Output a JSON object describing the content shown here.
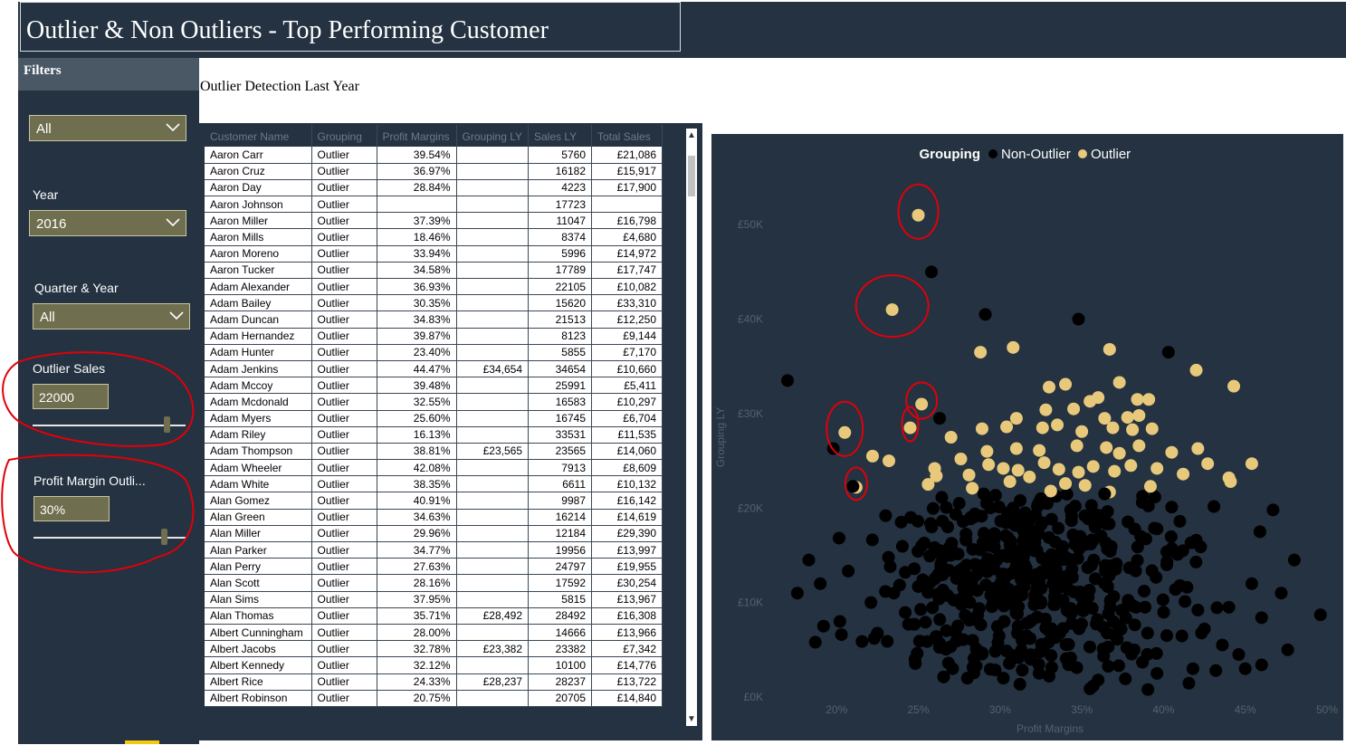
{
  "header": {
    "title": "Outlier & Non Outliers - Top Performing Customer"
  },
  "filters": {
    "heading": "Filters",
    "dropdown1": {
      "value": "All"
    },
    "year": {
      "label": "Year",
      "value": "2016"
    },
    "quarter": {
      "label": "Quarter & Year",
      "value": "All"
    },
    "outlier_sales": {
      "label": "Outlier Sales",
      "value": "22000",
      "slider_level": 0.98
    },
    "profit_margin": {
      "label": "Profit Margin Outli...",
      "value": "30%",
      "slider_level": 0.97
    }
  },
  "table": {
    "caption": "Outlier Detection Last Year",
    "columns": [
      "Customer Name",
      "Grouping",
      "Profit Margins",
      "Grouping LY",
      "Sales LY",
      "Total Sales"
    ],
    "rows": [
      [
        "Aaron Carr",
        "Outlier",
        "39.54%",
        "",
        "5760",
        "£21,086"
      ],
      [
        "Aaron Cruz",
        "Outlier",
        "36.97%",
        "",
        "16182",
        "£15,917"
      ],
      [
        "Aaron Day",
        "Outlier",
        "28.84%",
        "",
        "4223",
        "£17,900"
      ],
      [
        "Aaron Johnson",
        "Outlier",
        "",
        "",
        "17723",
        ""
      ],
      [
        "Aaron Miller",
        "Outlier",
        "37.39%",
        "",
        "11047",
        "£16,798"
      ],
      [
        "Aaron Mills",
        "Outlier",
        "18.46%",
        "",
        "8374",
        "£4,680"
      ],
      [
        "Aaron Moreno",
        "Outlier",
        "33.94%",
        "",
        "5996",
        "£14,972"
      ],
      [
        "Aaron Tucker",
        "Outlier",
        "34.58%",
        "",
        "17789",
        "£17,747"
      ],
      [
        "Adam Alexander",
        "Outlier",
        "36.93%",
        "",
        "22105",
        "£10,082"
      ],
      [
        "Adam Bailey",
        "Outlier",
        "30.35%",
        "",
        "15620",
        "£33,310"
      ],
      [
        "Adam Duncan",
        "Outlier",
        "34.83%",
        "",
        "21513",
        "£12,250"
      ],
      [
        "Adam Hernandez",
        "Outlier",
        "39.87%",
        "",
        "8123",
        "£9,144"
      ],
      [
        "Adam Hunter",
        "Outlier",
        "23.40%",
        "",
        "5855",
        "£7,170"
      ],
      [
        "Adam Jenkins",
        "Outlier",
        "44.47%",
        "£34,654",
        "34654",
        "£10,660"
      ],
      [
        "Adam Mccoy",
        "Outlier",
        "39.48%",
        "",
        "25991",
        "£5,411"
      ],
      [
        "Adam Mcdonald",
        "Outlier",
        "32.55%",
        "",
        "16583",
        "£10,297"
      ],
      [
        "Adam Myers",
        "Outlier",
        "25.60%",
        "",
        "16745",
        "£6,704"
      ],
      [
        "Adam Riley",
        "Outlier",
        "16.13%",
        "",
        "33531",
        "£11,535"
      ],
      [
        "Adam Thompson",
        "Outlier",
        "38.81%",
        "£23,565",
        "23565",
        "£14,060"
      ],
      [
        "Adam Wheeler",
        "Outlier",
        "42.08%",
        "",
        "7913",
        "£8,609"
      ],
      [
        "Adam White",
        "Outlier",
        "38.35%",
        "",
        "6611",
        "£10,132"
      ],
      [
        "Alan Gomez",
        "Outlier",
        "40.91%",
        "",
        "9987",
        "£16,142"
      ],
      [
        "Alan Green",
        "Outlier",
        "34.63%",
        "",
        "16214",
        "£14,619"
      ],
      [
        "Alan Miller",
        "Outlier",
        "29.96%",
        "",
        "12184",
        "£29,390"
      ],
      [
        "Alan Parker",
        "Outlier",
        "34.77%",
        "",
        "19956",
        "£13,997"
      ],
      [
        "Alan Perry",
        "Outlier",
        "27.63%",
        "",
        "24797",
        "£19,955"
      ],
      [
        "Alan Scott",
        "Outlier",
        "28.16%",
        "",
        "17592",
        "£30,254"
      ],
      [
        "Alan Sims",
        "Outlier",
        "37.95%",
        "",
        "5815",
        "£13,967"
      ],
      [
        "Alan Thomas",
        "Outlier",
        "35.71%",
        "£28,492",
        "28492",
        "£16,308"
      ],
      [
        "Albert Cunningham",
        "Outlier",
        "28.00%",
        "",
        "14666",
        "£13,966"
      ],
      [
        "Albert Jacobs",
        "Outlier",
        "32.78%",
        "£23,382",
        "23382",
        "£7,342"
      ],
      [
        "Albert Kennedy",
        "Outlier",
        "32.12%",
        "",
        "10100",
        "£14,776"
      ],
      [
        "Albert Rice",
        "Outlier",
        "24.33%",
        "£28,237",
        "28237",
        "£13,722"
      ],
      [
        "Albert Robinson",
        "Outlier",
        "20.75%",
        "",
        "20705",
        "£14,840"
      ]
    ]
  },
  "chart_data": {
    "type": "scatter",
    "title": "",
    "xlabel": "Profit Margins",
    "ylabel": "Grouping LY",
    "legend": {
      "title": "Grouping",
      "entries": [
        "Non-Outlier",
        "Outlier"
      ],
      "placement": "top-center"
    },
    "colors": {
      "Non-Outlier": "#000000",
      "Outlier": "#e8c97c"
    },
    "xlim": [
      16,
      50
    ],
    "ylim": [
      0,
      55000
    ],
    "x_ticks": [
      "20%",
      "25%",
      "30%",
      "35%",
      "40%",
      "45%",
      "50%"
    ],
    "y_ticks": [
      "£0K",
      "£10K",
      "£20K",
      "£30K",
      "£40K",
      "£50K"
    ],
    "grid": false,
    "series": [
      {
        "name": "Outlier",
        "points": [
          [
            25,
            51000
          ],
          [
            23.4,
            41000
          ],
          [
            25.2,
            31000
          ],
          [
            20.5,
            28000
          ],
          [
            24.5,
            28500
          ],
          [
            21.2,
            22200
          ],
          [
            28.8,
            36500
          ],
          [
            30.8,
            37000
          ],
          [
            36.7,
            36800
          ],
          [
            37.3,
            33300
          ],
          [
            42,
            34600
          ],
          [
            44.3,
            32900
          ],
          [
            33,
            32800
          ],
          [
            34,
            33100
          ],
          [
            35.5,
            31300
          ],
          [
            36,
            31700
          ],
          [
            38.4,
            31500
          ],
          [
            39.1,
            31500
          ],
          [
            31,
            29500
          ],
          [
            32.8,
            30400
          ],
          [
            34.5,
            30500
          ],
          [
            36.4,
            29500
          ],
          [
            37.8,
            29600
          ],
          [
            38.5,
            29800
          ],
          [
            28.9,
            28400
          ],
          [
            30.4,
            28600
          ],
          [
            32.6,
            28500
          ],
          [
            33.5,
            28800
          ],
          [
            35,
            28100
          ],
          [
            36.9,
            28500
          ],
          [
            38.1,
            28300
          ],
          [
            39.3,
            28400
          ],
          [
            27,
            27500
          ],
          [
            29.2,
            26000
          ],
          [
            31,
            26300
          ],
          [
            32.4,
            26100
          ],
          [
            34.7,
            26600
          ],
          [
            36.5,
            26400
          ],
          [
            37.3,
            25800
          ],
          [
            38.5,
            26600
          ],
          [
            40.5,
            25900
          ],
          [
            42.1,
            26300
          ],
          [
            22.2,
            25500
          ],
          [
            23.2,
            25000
          ],
          [
            26,
            24200
          ],
          [
            27.6,
            25200
          ],
          [
            29.3,
            24600
          ],
          [
            30.2,
            24200
          ],
          [
            31.1,
            24000
          ],
          [
            32.7,
            24800
          ],
          [
            33.6,
            24100
          ],
          [
            34.8,
            23800
          ],
          [
            35.7,
            24400
          ],
          [
            37,
            23900
          ],
          [
            38,
            24500
          ],
          [
            39.6,
            24200
          ],
          [
            41.2,
            23600
          ],
          [
            42.7,
            24700
          ],
          [
            44,
            23200
          ],
          [
            45.4,
            24700
          ],
          [
            25.6,
            22500
          ],
          [
            28.3,
            22100
          ],
          [
            30.6,
            22800
          ],
          [
            33.1,
            21800
          ],
          [
            35.2,
            22400
          ],
          [
            36.7,
            21700
          ],
          [
            39.2,
            22300
          ],
          [
            44.1,
            22800
          ],
          [
            26.1,
            23400
          ],
          [
            28.1,
            23500
          ],
          [
            31.8,
            23300
          ],
          [
            34,
            22600
          ]
        ]
      },
      {
        "name": "Non-Outlier",
        "points": [
          [
            17,
            33500
          ],
          [
            25.8,
            45000
          ],
          [
            29.1,
            40500
          ],
          [
            34.8,
            40000
          ],
          [
            40.3,
            36500
          ],
          [
            26.3,
            29500
          ],
          [
            21,
            22300
          ],
          [
            23,
            19200
          ],
          [
            18.3,
            14500
          ],
          [
            17.6,
            11000
          ],
          [
            19,
            12000
          ],
          [
            45.9,
            17500
          ],
          [
            48,
            14500
          ],
          [
            47.2,
            11000
          ],
          [
            46,
            8400
          ],
          [
            41,
            18600
          ],
          [
            42,
            16600
          ],
          [
            45.4,
            12000
          ],
          [
            49.6,
            8700
          ],
          [
            43.6,
            5500
          ],
          [
            47.6,
            5000
          ],
          [
            45,
            3000
          ],
          [
            46,
            3400
          ],
          [
            19.2,
            7500
          ],
          [
            20.2,
            8000
          ],
          [
            18.7,
            5800
          ],
          [
            22.3,
            6200
          ],
          [
            24.4,
            7700
          ],
          [
            22.1,
            10000
          ],
          [
            26.4,
            11000
          ],
          [
            24.8,
            4000
          ],
          [
            27.1,
            3000
          ],
          [
            30.2,
            2000
          ],
          [
            33,
            2200
          ],
          [
            36,
            1800
          ],
          [
            39.6,
            2500
          ],
          [
            41.8,
            3000
          ],
          [
            38.2,
            5000
          ],
          [
            42.5,
            7200
          ],
          [
            44,
            9500
          ],
          [
            27.5,
            20500
          ],
          [
            29,
            21500
          ],
          [
            30.8,
            20000
          ],
          [
            32.5,
            21000
          ],
          [
            34.6,
            20200
          ],
          [
            36.4,
            21500
          ],
          [
            38.7,
            20600
          ],
          [
            40.5,
            20100
          ],
          [
            26.8,
            18000
          ],
          [
            28.2,
            19000
          ],
          [
            39.6,
            17800
          ],
          [
            25.2,
            16000
          ],
          [
            27,
            15000
          ],
          [
            40.2,
            14000
          ],
          [
            24.2,
            13200
          ],
          [
            26,
            12500
          ],
          [
            41,
            11800
          ],
          [
            23.5,
            11000
          ],
          [
            42.1,
            9200
          ],
          [
            40.2,
            6500
          ],
          [
            44.6,
            4500
          ],
          [
            28,
            2000
          ],
          [
            26.3,
            5700
          ],
          [
            43.2,
            2800
          ],
          [
            19.8,
            26300
          ],
          [
            46.7,
            19800
          ]
        ]
      }
    ],
    "annotations": {
      "circled_outlier_points": [
        [
          25,
          51000
        ],
        [
          23.4,
          41000
        ],
        [
          25.2,
          31000
        ],
        [
          20.5,
          28000
        ],
        [
          24.5,
          28500
        ],
        [
          21.2,
          22200
        ]
      ],
      "circled_slicers": [
        "Outlier Sales",
        "Profit Margin Outli..."
      ]
    }
  }
}
